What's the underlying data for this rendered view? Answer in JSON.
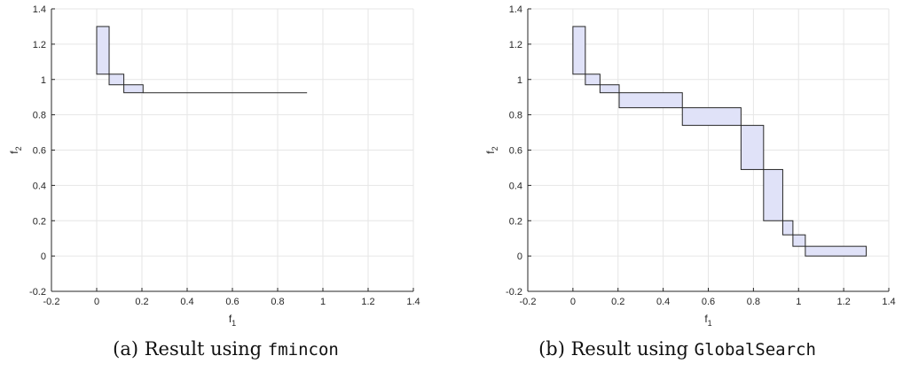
{
  "chart_data": [
    {
      "type": "area",
      "xlabel": "f1",
      "ylabel": "f2",
      "xlim": [
        -0.2,
        1.4
      ],
      "ylim": [
        -0.2,
        1.4
      ],
      "xticks": [
        -0.2,
        0,
        0.2,
        0.4,
        0.6,
        0.8,
        1,
        1.2,
        1.4
      ],
      "yticks": [
        -0.2,
        0,
        0.2,
        0.4,
        0.6,
        0.8,
        1,
        1.2,
        1.4
      ],
      "xtick_labels": [
        "-0.2",
        "0",
        "0.2",
        "0.4",
        "0.6",
        "0.8",
        "1",
        "1.2",
        "1.4"
      ],
      "ytick_labels": [
        "-0.2",
        "0",
        "0.2",
        "0.4",
        "0.6",
        "0.8",
        "1",
        "1.2",
        "1.4"
      ],
      "grid": true,
      "fill_color": "#e0e2f8",
      "edge_color": "#262626",
      "boxes": [
        {
          "x0": 0.0,
          "x1": 0.055,
          "y0": 1.03,
          "y1": 1.3
        },
        {
          "x0": 0.055,
          "x1": 0.12,
          "y0": 0.97,
          "y1": 1.03
        },
        {
          "x0": 0.12,
          "x1": 0.205,
          "y0": 0.925,
          "y1": 0.97
        },
        {
          "x0": 0.205,
          "x1": 0.93,
          "y0": 0.925,
          "y1": 0.925
        }
      ],
      "caption": {
        "prefix": "(a) Result using ",
        "code": "fmincon"
      }
    },
    {
      "type": "area",
      "xlabel": "f1",
      "ylabel": "f2",
      "xlim": [
        -0.2,
        1.4
      ],
      "ylim": [
        -0.2,
        1.4
      ],
      "xticks": [
        -0.2,
        0,
        0.2,
        0.4,
        0.6,
        0.8,
        1,
        1.2,
        1.4
      ],
      "yticks": [
        -0.2,
        0,
        0.2,
        0.4,
        0.6,
        0.8,
        1,
        1.2,
        1.4
      ],
      "xtick_labels": [
        "-0.2",
        "0",
        "0.2",
        "0.4",
        "0.6",
        "0.8",
        "1",
        "1.2",
        "1.4"
      ],
      "ytick_labels": [
        "-0.2",
        "0",
        "0.2",
        "0.4",
        "0.6",
        "0.8",
        "1",
        "1.2",
        "1.4"
      ],
      "grid": true,
      "fill_color": "#e0e2f8",
      "edge_color": "#262626",
      "boxes": [
        {
          "x0": 0.0,
          "x1": 0.055,
          "y0": 1.03,
          "y1": 1.3
        },
        {
          "x0": 0.055,
          "x1": 0.12,
          "y0": 0.97,
          "y1": 1.03
        },
        {
          "x0": 0.12,
          "x1": 0.205,
          "y0": 0.925,
          "y1": 0.97
        },
        {
          "x0": 0.205,
          "x1": 0.485,
          "y0": 0.84,
          "y1": 0.925
        },
        {
          "x0": 0.485,
          "x1": 0.745,
          "y0": 0.74,
          "y1": 0.84
        },
        {
          "x0": 0.745,
          "x1": 0.845,
          "y0": 0.49,
          "y1": 0.74
        },
        {
          "x0": 0.845,
          "x1": 0.93,
          "y0": 0.2,
          "y1": 0.49
        },
        {
          "x0": 0.93,
          "x1": 0.975,
          "y0": 0.12,
          "y1": 0.2
        },
        {
          "x0": 0.975,
          "x1": 1.03,
          "y0": 0.055,
          "y1": 0.12
        },
        {
          "x0": 1.03,
          "x1": 1.3,
          "y0": 0.0,
          "y1": 0.055
        }
      ],
      "caption": {
        "prefix": "(b) Result using ",
        "code": "GlobalSearch"
      }
    }
  ]
}
